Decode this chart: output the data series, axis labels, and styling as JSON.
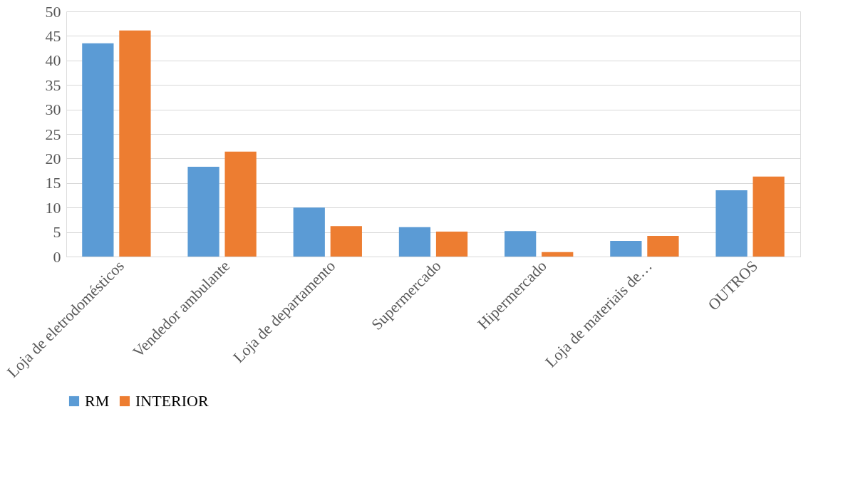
{
  "chart_data": {
    "type": "bar",
    "categories": [
      "Loja de eletrodomésticos",
      "Vendedor ambulante",
      "Loja de departamento",
      "Supermercado",
      "Hipermercado",
      "Loja de materiais de…",
      "OUTROS"
    ],
    "series": [
      {
        "name": "RM",
        "color": "#5b9bd5",
        "values": [
          43.5,
          18.3,
          10.0,
          6.0,
          5.2,
          3.2,
          13.5
        ]
      },
      {
        "name": "INTERIOR",
        "color": "#ed7d31",
        "values": [
          46.1,
          21.4,
          6.2,
          5.1,
          0.9,
          4.2,
          16.3
        ]
      }
    ],
    "ylim": [
      0,
      50
    ],
    "yticks": [
      0,
      5,
      10,
      15,
      20,
      25,
      30,
      35,
      40,
      45,
      50
    ],
    "grid": "y",
    "legend": "bottom"
  }
}
